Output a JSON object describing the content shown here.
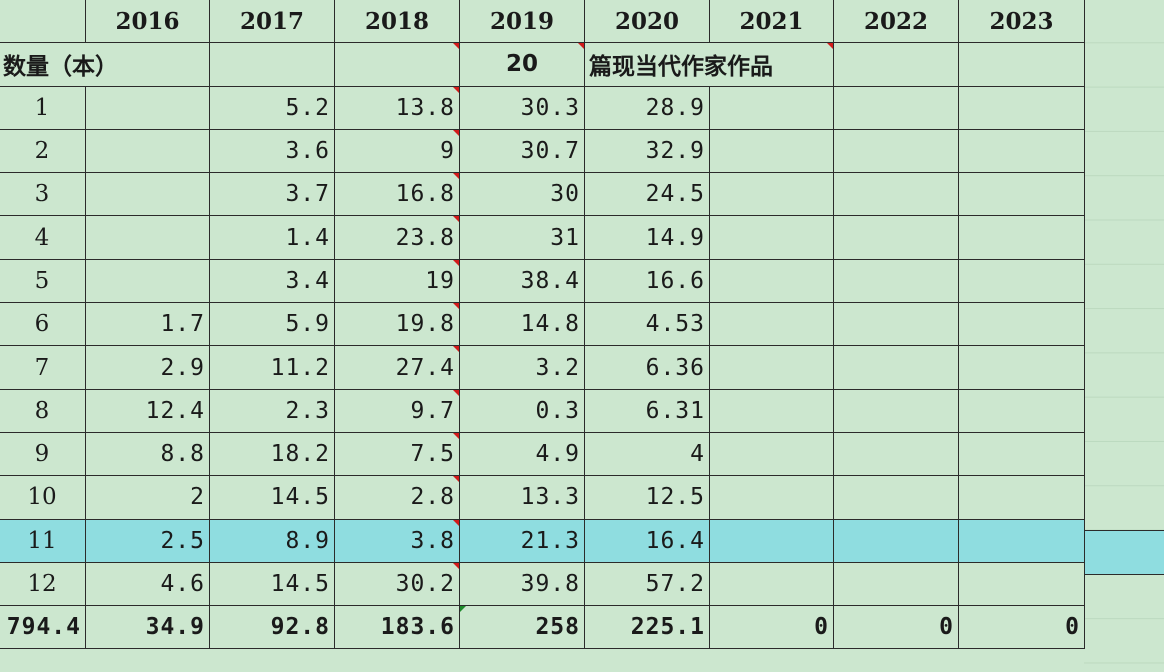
{
  "sheet": {
    "years": [
      "2016",
      "2017",
      "2018",
      "2019",
      "2020",
      "2021",
      "2022",
      "2023"
    ],
    "subheader": {
      "label": "数量（本）",
      "cell_2019": "20",
      "cell_2020": "篇现当代作家作品"
    },
    "rows": [
      {
        "label": "1",
        "v2016": "",
        "v2017": "5.2",
        "v2018": "13.8",
        "v2019": "30.3",
        "v2020": "28.9"
      },
      {
        "label": "2",
        "v2016": "",
        "v2017": "3.6",
        "v2018": "9",
        "v2019": "30.7",
        "v2020": "32.9"
      },
      {
        "label": "3",
        "v2016": "",
        "v2017": "3.7",
        "v2018": "16.8",
        "v2019": "30",
        "v2020": "24.5"
      },
      {
        "label": "4",
        "v2016": "",
        "v2017": "1.4",
        "v2018": "23.8",
        "v2019": "31",
        "v2020": "14.9"
      },
      {
        "label": "5",
        "v2016": "",
        "v2017": "3.4",
        "v2018": "19",
        "v2019": "38.4",
        "v2020": "16.6"
      },
      {
        "label": "6",
        "v2016": "1.7",
        "v2017": "5.9",
        "v2018": "19.8",
        "v2019": "14.8",
        "v2020": "4.53"
      },
      {
        "label": "7",
        "v2016": "2.9",
        "v2017": "11.2",
        "v2018": "27.4",
        "v2019": "3.2",
        "v2020": "6.36"
      },
      {
        "label": "8",
        "v2016": "12.4",
        "v2017": "2.3",
        "v2018": "9.7",
        "v2019": "0.3",
        "v2020": "6.31"
      },
      {
        "label": "9",
        "v2016": "8.8",
        "v2017": "18.2",
        "v2018": "7.5",
        "v2019": "4.9",
        "v2020": "4"
      },
      {
        "label": "10",
        "v2016": "2",
        "v2017": "14.5",
        "v2018": "2.8",
        "v2019": "13.3",
        "v2020": "12.5"
      },
      {
        "label": "11",
        "v2016": "2.5",
        "v2017": "8.9",
        "v2018": "3.8",
        "v2019": "21.3",
        "v2020": "16.4"
      },
      {
        "label": "12",
        "v2016": "4.6",
        "v2017": "14.5",
        "v2018": "30.2",
        "v2019": "39.8",
        "v2020": "57.2"
      }
    ],
    "totals": {
      "label": "794.4",
      "v2016": "34.9",
      "v2017": "92.8",
      "v2018": "183.6",
      "v2019": "258",
      "v2020": "225.1",
      "v2021": "0",
      "v2022": "0",
      "v2023": "0"
    },
    "colors": {
      "background": "#cce7cf",
      "selected_row": "#8fdde0",
      "comment_marker": "#d21b1b",
      "formula_marker": "#1d8a2b"
    }
  }
}
